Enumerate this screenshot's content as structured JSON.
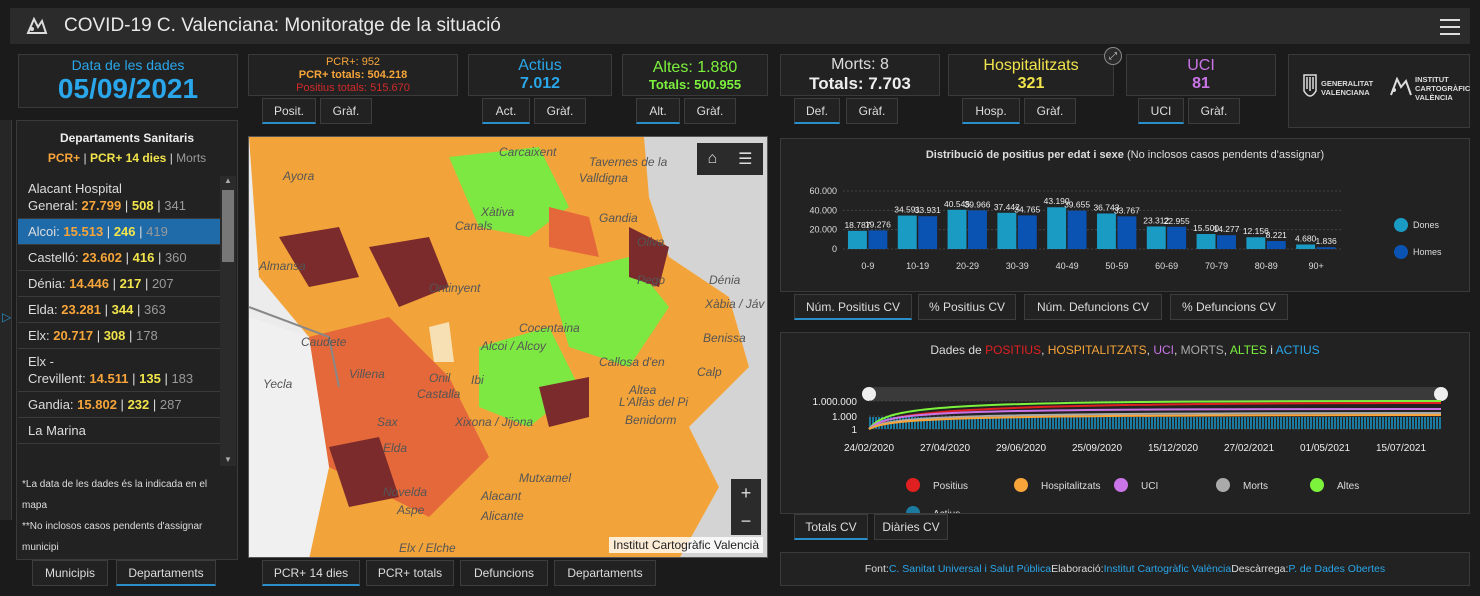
{
  "header": {
    "title": "COVID-19 C. Valenciana: Monitoratge de la situació"
  },
  "date": {
    "label": "Data de les dades",
    "value": "05/09/2021"
  },
  "pcr": {
    "line1": "PCR+: 952",
    "line2": "PCR+ totals: 504.218",
    "line3": "Positius totals: 515.670",
    "tabs": [
      "Posit.",
      "Gràf."
    ]
  },
  "actius": {
    "label": "Actius",
    "value": "7.012",
    "tabs": [
      "Act.",
      "Gràf."
    ]
  },
  "altes": {
    "line1": "Altes: 1.880",
    "line2": "Totals: 500.955",
    "tabs": [
      "Alt.",
      "Gràf."
    ]
  },
  "morts": {
    "line1": "Morts: 8",
    "line2": "Totals: 7.703",
    "tabs": [
      "Def.",
      "Gràf."
    ]
  },
  "hosp": {
    "label": "Hospitalitzats",
    "value": "321",
    "tabs": [
      "Hosp.",
      "Gràf."
    ]
  },
  "uci": {
    "label": "UCI",
    "value": "81",
    "tabs": [
      "UCI",
      "Gràf."
    ]
  },
  "logos": {
    "gva1": "GENERALITAT",
    "gva2": "VALENCIANA",
    "icv1": "INSTITUT",
    "icv2": "CARTOGRÀFIC",
    "icv3": "VALÈNCIA"
  },
  "colors": {
    "accent": "#2a8ec8",
    "pcr": "#f7a53a",
    "pcr14": "#f2e44c",
    "altes": "#7cf23d",
    "hosp": "#f2e44c",
    "uci": "#c975e8",
    "actius": "#2aa6ea",
    "dones": "#1a9bc4",
    "homes": "#0b53b3"
  },
  "depts": {
    "title": "Departaments Sanitaris",
    "legend_pcr": "PCR+",
    "legend_pcr14": "PCR+ 14 dies",
    "legend_morts": "Morts",
    "sep": "|",
    "items": [
      {
        "name_a": "Alacant Hospital",
        "name_b": "General: ",
        "pcr": "27.799",
        "pcr14": "508",
        "morts": "341"
      },
      {
        "name_a": "",
        "name_b": "Alcoi: ",
        "pcr": "15.513",
        "pcr14": "246",
        "morts": "419"
      },
      {
        "name_a": "",
        "name_b": "Castelló: ",
        "pcr": "23.602",
        "pcr14": "416",
        "morts": "360"
      },
      {
        "name_a": "",
        "name_b": "Dénia: ",
        "pcr": "14.446",
        "pcr14": "217",
        "morts": "207"
      },
      {
        "name_a": "",
        "name_b": "Elda: ",
        "pcr": "23.281",
        "pcr14": "344",
        "morts": "363"
      },
      {
        "name_a": "",
        "name_b": "Elx: ",
        "pcr": "20.717",
        "pcr14": "308",
        "morts": "178"
      },
      {
        "name_a": "Elx -",
        "name_b": "Crevillent: ",
        "pcr": "14.511",
        "pcr14": "135",
        "morts": "183"
      },
      {
        "name_a": "",
        "name_b": "Gandia: ",
        "pcr": "15.802",
        "pcr14": "232",
        "morts": "287"
      },
      {
        "name_a": "",
        "name_b": "La Marina",
        "pcr": "",
        "pcr14": "",
        "morts": ""
      }
    ],
    "note1": "*La data de les dades és la indicada en el mapa",
    "note2": "**No inclosos casos pendents d'assignar municipi",
    "tabs": [
      "Municipis",
      "Departaments"
    ]
  },
  "map": {
    "labels": [
      "Carcaixent",
      "Tavernes de la",
      "Valldigna",
      "Xàtiva",
      "Canals",
      "Gandia",
      "Oliva",
      "Ontinyent",
      "Pego",
      "Dénia",
      "Xàbia / Jáv",
      "Almansa",
      "Caudete",
      "Yecla",
      "Cocentaina",
      "Alcoi / Alcoy",
      "Benissa",
      "Callosa d'en",
      "Calp",
      "Villena",
      "Onil",
      "Castalla",
      "Altea",
      "L'Alfàs del Pi",
      "Benidorm",
      "Ibi",
      "Sax",
      "Elda",
      "Xixona / Jijona",
      "Mutxamel",
      "Novelda",
      "Aspe",
      "Alacant",
      "Alicante",
      "Elx / Elche",
      "Ayora"
    ],
    "credit": "Institut Cartogràfic Valencià",
    "zoom_in": "+",
    "zoom_out": "−",
    "tabs": [
      "PCR+ 14 dies",
      "PCR+ totals",
      "Defuncions",
      "Departaments"
    ]
  },
  "age_chart": {
    "title_bold": "Distribució de positius per edat i sexe",
    "title_rest": " (No inclosos casos pendents d'assignar)",
    "tabs": [
      "Núm. Positius CV",
      "% Positius CV",
      "Núm. Defuncions CV",
      "% Defuncions CV"
    ]
  },
  "time_chart": {
    "title_pre": "Dades de ",
    "t_pos": "POSITIUS",
    ",": ", ",
    "t_hosp": "HOSPITALITZATS",
    "t_uci": "UCI",
    "t_morts": "MORTS",
    "t_altes": "ALTES",
    "t_i": " i ",
    "t_act": "ACTIUS",
    "tabs": [
      "Totals CV",
      "Diàries CV"
    ],
    "legend": [
      "Positius",
      "Hospitalitzats",
      "UCI",
      "Morts",
      "Altes",
      "Actius"
    ]
  },
  "footer": {
    "font_label": "Font: ",
    "font_link": "C. Sanitat Universal i Salut Pública",
    "elab_label": " Elaboració: ",
    "elab_link": "Institut Cartogràfic València",
    "desc_label": " Descàrrega: ",
    "desc_link": "P. de Dades Obertes"
  },
  "chart_data": [
    {
      "type": "bar",
      "title": "Distribució de positius per edat i sexe",
      "categories": [
        "0-9",
        "10-19",
        "20-29",
        "30-39",
        "40-49",
        "50-59",
        "60-69",
        "70-79",
        "80-89",
        "90+"
      ],
      "series": [
        {
          "name": "Dones",
          "values": [
            18787,
            34591,
            40545,
            37442,
            43190,
            36743,
            23312,
            15500,
            12156,
            4680
          ]
        },
        {
          "name": "Homes",
          "values": [
            19276,
            33931,
            39966,
            34765,
            39655,
            33767,
            22955,
            14277,
            8221,
            1836
          ]
        }
      ],
      "labels": {
        "Dones": [
          "18.787",
          "34.591",
          "40.545",
          "37.442",
          "43.190",
          "36.743",
          "23.312",
          "15.500",
          "12.156",
          "4.680"
        ],
        "Homes": [
          "19.276",
          "33.931",
          "39.966",
          "34.765",
          "39.655",
          "33.767",
          "22.955",
          "14.277",
          "8.221",
          "1.836"
        ]
      },
      "yticks": [
        "60.000",
        "40.000",
        "20.000",
        "0"
      ],
      "ylim": [
        0,
        60000
      ],
      "legend": "right"
    },
    {
      "type": "line",
      "title": "Dades de POSITIUS, HOSPITALITZATS, UCI, MORTS, ALTES i ACTIUS",
      "yscale": "log",
      "yticks": [
        "1.000.000",
        "1.000",
        "1"
      ],
      "xticks": [
        "24/02/2020",
        "27/04/2020",
        "29/06/2020",
        "25/09/2020",
        "15/12/2020",
        "27/02/2021",
        "01/05/2021",
        "15/07/2021"
      ],
      "series": [
        {
          "name": "Positius"
        },
        {
          "name": "Hospitalitzats"
        },
        {
          "name": "UCI"
        },
        {
          "name": "Morts"
        },
        {
          "name": "Altes"
        },
        {
          "name": "Actius"
        }
      ],
      "legend": "bottom"
    }
  ]
}
